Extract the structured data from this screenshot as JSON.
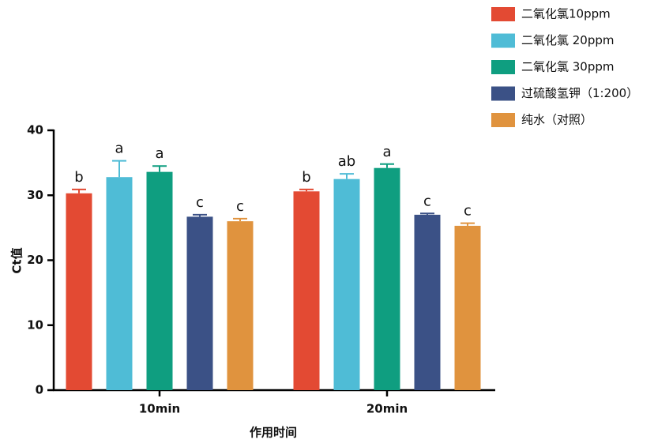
{
  "chart_data": {
    "type": "bar",
    "x_label": "作用时间",
    "y_label": "Ct值",
    "categories": [
      "10min",
      "20min"
    ],
    "ylim": [
      0,
      40
    ],
    "yticks": [
      0,
      10,
      20,
      30,
      40
    ],
    "legend": "top-right",
    "series": [
      {
        "name": "二氧化氯10ppm",
        "color": "#e34a33",
        "values": [
          30.3,
          30.6
        ],
        "errors": [
          0.6,
          0.3
        ],
        "annotations": [
          "b",
          "b"
        ]
      },
      {
        "name": "二氧化氯 20ppm",
        "color": "#4fbcd6",
        "values": [
          32.8,
          32.5
        ],
        "errors": [
          2.5,
          0.8
        ],
        "annotations": [
          "a",
          "ab"
        ]
      },
      {
        "name": "二氧化氯 30ppm",
        "color": "#0f9e80",
        "values": [
          33.6,
          34.2
        ],
        "errors": [
          0.9,
          0.6
        ],
        "annotations": [
          "a",
          "a"
        ]
      },
      {
        "name": "过硫酸氢钾（1:200）",
        "color": "#3b5186",
        "values": [
          26.7,
          27.0
        ],
        "errors": [
          0.3,
          0.2
        ],
        "annotations": [
          "c",
          "c"
        ]
      },
      {
        "name": "纯水（对照）",
        "color": "#e0933e",
        "values": [
          26.0,
          25.3
        ],
        "errors": [
          0.4,
          0.4
        ],
        "annotations": [
          "c",
          "c"
        ]
      }
    ]
  }
}
